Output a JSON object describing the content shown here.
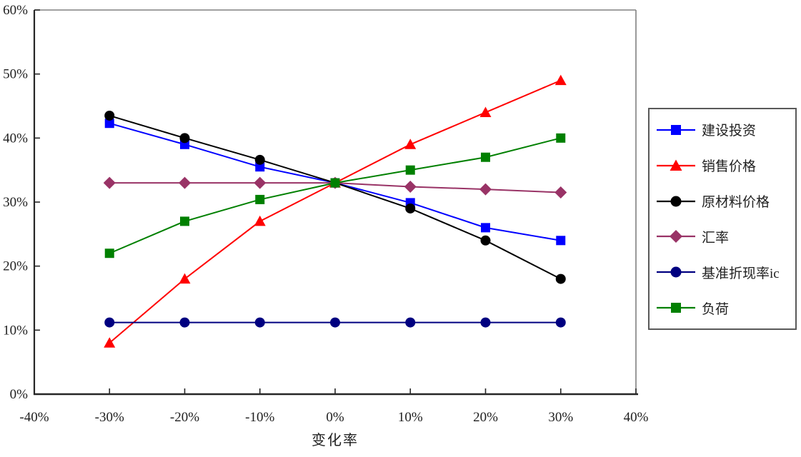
{
  "chart_data": {
    "type": "line",
    "title": "",
    "xlabel": "变化率",
    "ylabel": "",
    "xlim": [
      -40,
      40
    ],
    "ylim": [
      0,
      60
    ],
    "grid": false,
    "legend_position": "right",
    "x_ticks": [
      -40,
      -30,
      -20,
      -10,
      0,
      10,
      20,
      30,
      40
    ],
    "x_tick_labels": [
      "-40%",
      "-30%",
      "-20%",
      "-10%",
      "0%",
      "10%",
      "20%",
      "30%",
      "40%"
    ],
    "y_ticks": [
      0,
      10,
      20,
      30,
      40,
      50,
      60
    ],
    "y_tick_labels": [
      "0%",
      "10%",
      "20%",
      "30%",
      "40%",
      "50%",
      "60%"
    ],
    "x": [
      -30,
      -20,
      -10,
      0,
      10,
      20,
      30
    ],
    "series": [
      {
        "name": "建设投资",
        "color": "#0000ff",
        "marker": "square",
        "values": [
          42.3,
          39.0,
          35.5,
          33.0,
          29.9,
          26.0,
          24.0
        ]
      },
      {
        "name": "销售价格",
        "color": "#ff0000",
        "marker": "triangle",
        "values": [
          8.0,
          18.0,
          27.0,
          33.0,
          39.0,
          44.0,
          49.0
        ]
      },
      {
        "name": "原材料价格",
        "color": "#000000",
        "marker": "circle",
        "values": [
          43.5,
          40.0,
          36.6,
          33.0,
          29.0,
          24.0,
          18.0
        ]
      },
      {
        "name": "汇率",
        "color": "#993366",
        "marker": "diamond",
        "values": [
          33.0,
          33.0,
          33.0,
          33.0,
          32.4,
          32.0,
          31.5
        ]
      },
      {
        "name": "基准折现率ic",
        "color": "#000080",
        "marker": "circle",
        "values": [
          11.2,
          11.2,
          11.2,
          11.2,
          11.2,
          11.2,
          11.2
        ]
      },
      {
        "name": "负荷",
        "color": "#008000",
        "marker": "square",
        "values": [
          22.0,
          27.0,
          30.4,
          33.0,
          35.0,
          37.0,
          40.0
        ]
      }
    ],
    "colors": {
      "axis": "#262626",
      "plot_border": "#808080",
      "tick_label": "#1f1f1f",
      "legend_border": "#595959",
      "background": "#ffffff"
    }
  }
}
